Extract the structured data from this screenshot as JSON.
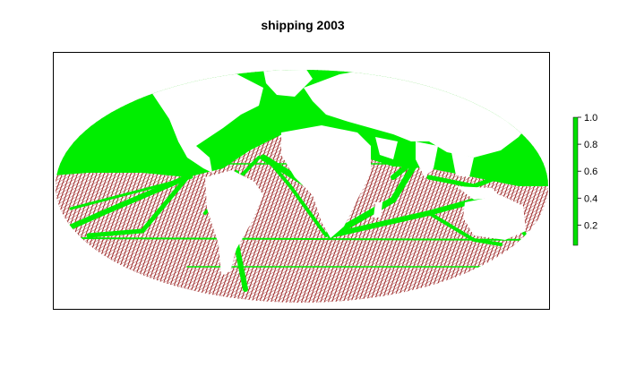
{
  "title": "shipping 2003",
  "legend": {
    "ticks": [
      "1.0",
      "0.8",
      "0.6",
      "0.4",
      "0.2"
    ],
    "tick_values": [
      1.0,
      0.8,
      0.6,
      0.4,
      0.2
    ],
    "range": [
      0.05,
      1.0
    ],
    "color": "#00e000"
  },
  "colors": {
    "ocean_low": "#8b0000",
    "ocean_high": "#00ee00",
    "land": "#ffffff",
    "frame": "#000000"
  },
  "projection": "Mollweide"
}
